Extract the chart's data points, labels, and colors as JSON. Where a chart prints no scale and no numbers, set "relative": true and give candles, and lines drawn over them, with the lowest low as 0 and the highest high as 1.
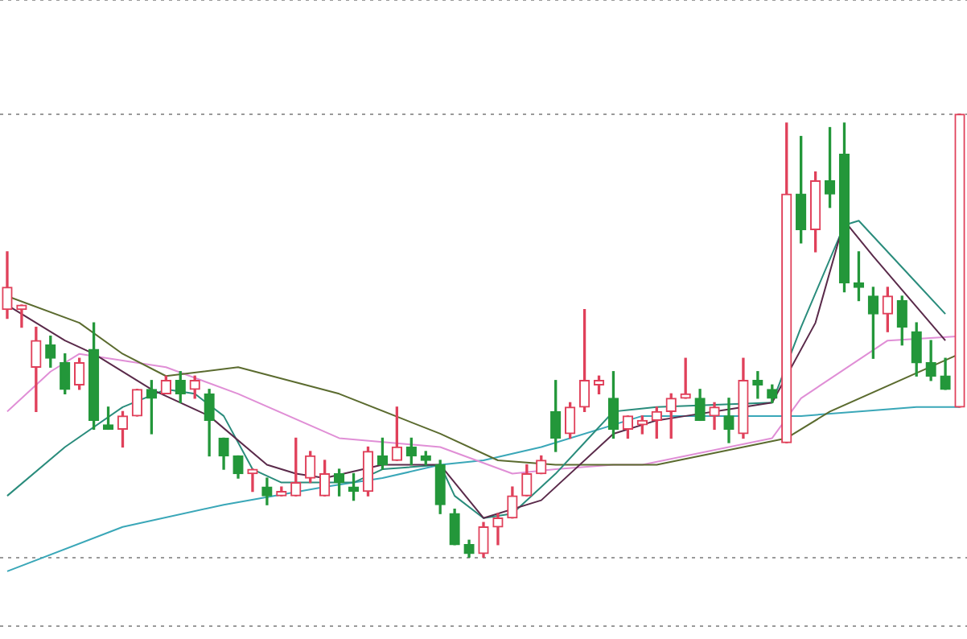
{
  "chart_data": {
    "type": "candlestick",
    "relative": true,
    "grid": "y",
    "categories": [
      null,
      null,
      null,
      null,
      null,
      null,
      null,
      null,
      null,
      null,
      null,
      null,
      null,
      null,
      null,
      null,
      null,
      null,
      null,
      null,
      null,
      null,
      null,
      null,
      null,
      null,
      null,
      null,
      null,
      null,
      null,
      null,
      null,
      null,
      null,
      null,
      null,
      null,
      null,
      null,
      null,
      null,
      null,
      null,
      null,
      null,
      null,
      null,
      null,
      null,
      null,
      null,
      null,
      null,
      null,
      null,
      null,
      null,
      null,
      null,
      null,
      null,
      null,
      null,
      null,
      null,
      null
    ],
    "ohlc": [
      [
        0.56,
        0.69,
        0.54,
        0.61
      ],
      [
        0.56,
        0.57,
        0.52,
        0.57
      ],
      [
        0.43,
        0.52,
        0.33,
        0.49
      ],
      [
        0.48,
        0.5,
        0.43,
        0.45
      ],
      [
        0.44,
        0.46,
        0.37,
        0.38
      ],
      [
        0.39,
        0.45,
        0.38,
        0.44
      ],
      [
        0.47,
        0.53,
        0.29,
        0.31
      ],
      [
        0.3,
        0.34,
        0.29,
        0.29
      ],
      [
        0.29,
        0.33,
        0.25,
        0.32
      ],
      [
        0.32,
        0.38,
        0.32,
        0.38
      ],
      [
        0.38,
        0.4,
        0.28,
        0.36
      ],
      [
        0.37,
        0.41,
        0.37,
        0.4
      ],
      [
        0.4,
        0.42,
        0.35,
        0.37
      ],
      [
        0.38,
        0.41,
        0.36,
        0.4
      ],
      [
        0.37,
        0.38,
        0.23,
        0.31
      ],
      [
        0.27,
        0.27,
        0.2,
        0.23
      ],
      [
        0.23,
        0.23,
        0.18,
        0.19
      ],
      [
        0.19,
        0.2,
        0.15,
        0.2
      ],
      [
        0.16,
        0.18,
        0.12,
        0.14
      ],
      [
        0.14,
        0.16,
        0.14,
        0.15
      ],
      [
        0.14,
        0.27,
        0.14,
        0.17
      ],
      [
        0.18,
        0.24,
        0.17,
        0.23
      ],
      [
        0.14,
        0.22,
        0.14,
        0.19
      ],
      [
        0.19,
        0.2,
        0.14,
        0.17
      ],
      [
        0.16,
        0.19,
        0.13,
        0.15
      ],
      [
        0.15,
        0.25,
        0.14,
        0.24
      ],
      [
        0.23,
        0.27,
        0.2,
        0.21
      ],
      [
        0.22,
        0.34,
        0.22,
        0.25
      ],
      [
        0.25,
        0.27,
        0.21,
        0.23
      ],
      [
        0.23,
        0.24,
        0.21,
        0.22
      ],
      [
        0.21,
        0.22,
        0.1,
        0.12
      ],
      [
        0.1,
        0.11,
        0.03,
        0.03
      ],
      [
        0.03,
        0.04,
        0,
        0.01
      ],
      [
        0.01,
        0.08,
        0,
        0.07
      ],
      [
        0.07,
        0.1,
        0.03,
        0.09
      ],
      [
        0.09,
        0.16,
        0.09,
        0.14
      ],
      [
        0.14,
        0.21,
        0.14,
        0.19
      ],
      [
        0.19,
        0.23,
        0.19,
        0.22
      ],
      [
        0.33,
        0.4,
        0.24,
        0.27
      ],
      [
        0.28,
        0.35,
        0.27,
        0.34
      ],
      [
        0.34,
        0.56,
        0.33,
        0.4
      ],
      [
        0.39,
        0.41,
        0.37,
        0.4
      ],
      [
        0.36,
        0.42,
        0.27,
        0.29
      ],
      [
        0.29,
        0.32,
        0.27,
        0.32
      ],
      [
        0.3,
        0.32,
        0.28,
        0.31
      ],
      [
        0.31,
        0.34,
        0.27,
        0.33
      ],
      [
        0.33,
        0.37,
        0.27,
        0.36
      ],
      [
        0.36,
        0.45,
        0.36,
        0.37
      ],
      [
        0.36,
        0.38,
        0.31,
        0.31
      ],
      [
        0.32,
        0.35,
        0.29,
        0.34
      ],
      [
        0.32,
        0.36,
        0.26,
        0.29
      ],
      [
        0.28,
        0.45,
        0.27,
        0.4
      ],
      [
        0.4,
        0.42,
        0.36,
        0.39
      ],
      [
        0.38,
        0.39,
        0.35,
        0.36
      ],
      [
        0.26,
        0.98,
        0.26,
        0.82
      ],
      [
        0.82,
        0.95,
        0.71,
        0.74
      ],
      [
        0.74,
        0.87,
        0.69,
        0.85
      ],
      [
        0.85,
        0.97,
        0.79,
        0.82
      ],
      [
        0.91,
        0.98,
        0.6,
        0.62
      ],
      [
        0.62,
        0.69,
        0.58,
        0.61
      ],
      [
        0.59,
        0.61,
        0.45,
        0.55
      ],
      [
        0.55,
        0.61,
        0.51,
        0.59
      ],
      [
        0.58,
        0.59,
        0.48,
        0.52
      ],
      [
        0.51,
        0.53,
        0.41,
        0.44
      ],
      [
        0.44,
        0.49,
        0.4,
        0.41
      ],
      [
        0.41,
        0.45,
        0.38,
        0.38
      ],
      [
        0.34,
        1.0,
        0.34,
        1.0
      ]
    ],
    "colors": [
      "#e0405a",
      "#e0405a",
      "#e0405a",
      "#23973a",
      "#23973a",
      "#e0405a",
      "#23973a",
      "#23973a",
      "#e0405a",
      "#e0405a",
      "#23973a",
      "#e0405a",
      "#23973a",
      "#e0405a",
      "#23973a",
      "#23973a",
      "#23973a",
      "#e0405a",
      "#23973a",
      "#e0405a",
      "#e0405a",
      "#e0405a",
      "#e0405a",
      "#23973a",
      "#23973a",
      "#e0405a",
      "#23973a",
      "#e0405a",
      "#23973a",
      "#23973a",
      "#23973a",
      "#23973a",
      "#23973a",
      "#e0405a",
      "#e0405a",
      "#e0405a",
      "#e0405a",
      "#e0405a",
      "#23973a",
      "#e0405a",
      "#e0405a",
      "#e0405a",
      "#23973a",
      "#e0405a",
      "#e0405a",
      "#e0405a",
      "#e0405a",
      "#e0405a",
      "#23973a",
      "#e0405a",
      "#23973a",
      "#e0405a",
      "#23973a",
      "#23973a",
      "#e0405a",
      "#23973a",
      "#e0405a",
      "#23973a",
      "#23973a",
      "#23973a",
      "#23973a",
      "#e0405a",
      "#23973a",
      "#23973a",
      "#23973a",
      "#23973a",
      "#e0405a"
    ],
    "series": [
      {
        "type": "line",
        "color": "#5a2a4a",
        "values": [
          0.57,
          null,
          0.53,
          null,
          0.49,
          null,
          0.46,
          null,
          null,
          null,
          0.38,
          null,
          null,
          null,
          0.32,
          null,
          null,
          null,
          0.21,
          null,
          0.19,
          null,
          0.18,
          null,
          null,
          null,
          0.21,
          null,
          null,
          null,
          0.21,
          null,
          null,
          0.09,
          null,
          null,
          null,
          0.13,
          null,
          null,
          null,
          null,
          0.28,
          null,
          null,
          0.31,
          null,
          0.32,
          null,
          null,
          null,
          null,
          null,
          0.35,
          null,
          null,
          0.53,
          null,
          0.76,
          null,
          0.68,
          null,
          null,
          null,
          null,
          0.49,
          null
        ]
      },
      {
        "type": "line",
        "color": "#2a8c7c",
        "values": [
          0.14,
          null,
          null,
          null,
          0.25,
          null,
          null,
          null,
          0.34,
          null,
          null,
          0.38,
          null,
          0.37,
          null,
          0.32,
          null,
          0.2,
          null,
          0.17,
          null,
          null,
          0.17,
          null,
          0.17,
          null,
          0.2,
          null,
          null,
          null,
          0.21,
          0.14,
          null,
          0.09,
          null,
          0.1,
          null,
          null,
          0.19,
          null,
          0.26,
          null,
          0.33,
          null,
          null,
          0.34,
          null,
          null,
          null,
          null,
          null,
          null,
          null,
          0.35,
          null,
          0.52,
          null,
          null,
          0.75,
          0.76,
          null,
          null,
          null,
          0.62,
          null,
          0.55,
          null
        ]
      },
      {
        "type": "line",
        "color": "#5b6b2f",
        "values": [
          0.59,
          null,
          null,
          null,
          null,
          0.53,
          null,
          null,
          0.46,
          null,
          null,
          0.41,
          null,
          null,
          null,
          null,
          0.43,
          null,
          null,
          null,
          null,
          null,
          null,
          0.37,
          null,
          null,
          null,
          null,
          null,
          null,
          0.28,
          null,
          null,
          null,
          0.22,
          null,
          null,
          null,
          0.21,
          null,
          null,
          null,
          null,
          null,
          null,
          0.21,
          null,
          null,
          null,
          null,
          null,
          null,
          null,
          null,
          0.27,
          null,
          null,
          0.33,
          null,
          null,
          null,
          null,
          null,
          null,
          null,
          null,
          0.46
        ]
      },
      {
        "type": "line",
        "color": "#e08fd6",
        "values": [
          0.33,
          null,
          null,
          0.42,
          null,
          0.46,
          null,
          null,
          null,
          null,
          null,
          0.43,
          null,
          null,
          null,
          null,
          0.37,
          null,
          null,
          null,
          null,
          null,
          null,
          0.27,
          null,
          null,
          null,
          null,
          null,
          null,
          0.25,
          null,
          null,
          null,
          null,
          0.19,
          null,
          null,
          0.2,
          null,
          null,
          null,
          0.21,
          null,
          0.21,
          null,
          null,
          null,
          null,
          null,
          null,
          null,
          null,
          0.27,
          null,
          0.36,
          null,
          null,
          null,
          null,
          null,
          0.49,
          null,
          null,
          null,
          null,
          0.5
        ]
      },
      {
        "type": "line",
        "color": "#3aa7b8",
        "values": [
          -0.03,
          null,
          null,
          null,
          null,
          null,
          null,
          null,
          0.07,
          null,
          null,
          null,
          null,
          null,
          null,
          0.12,
          null,
          null,
          null,
          null,
          null,
          null,
          0.16,
          null,
          null,
          null,
          0.18,
          null,
          null,
          null,
          0.21,
          null,
          null,
          0.22,
          null,
          null,
          null,
          0.25,
          null,
          null,
          null,
          null,
          null,
          null,
          0.32,
          null,
          null,
          null,
          null,
          null,
          null,
          null,
          null,
          null,
          null,
          0.32,
          null,
          null,
          null,
          null,
          null,
          null,
          null,
          0.34,
          null,
          null,
          0.34
        ]
      }
    ]
  }
}
